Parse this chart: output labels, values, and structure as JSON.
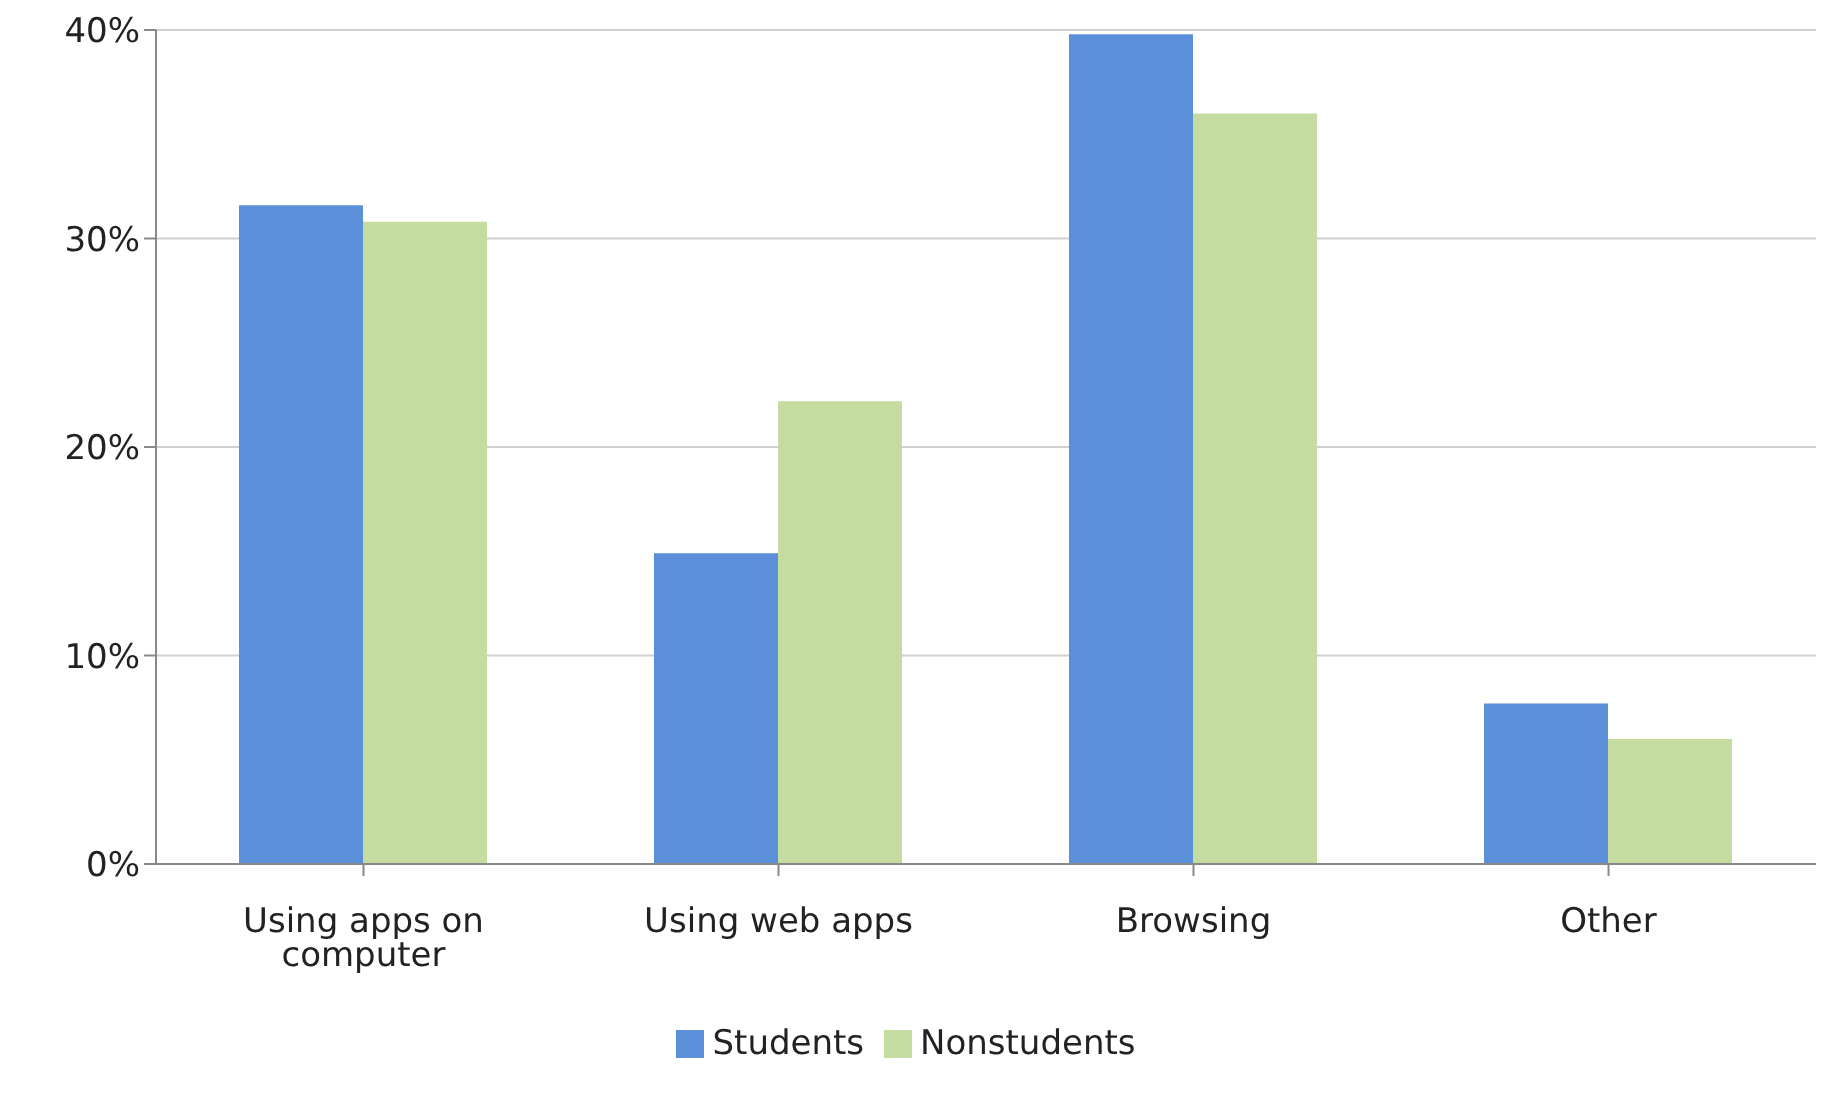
{
  "chart_data": {
    "type": "bar",
    "categories": [
      "Using apps on computer",
      "Using web apps",
      "Browsing",
      "Other"
    ],
    "series": [
      {
        "name": "Students",
        "color": "#5b8fd9",
        "values": [
          31.6,
          14.9,
          39.8,
          7.7
        ]
      },
      {
        "name": "Nonstudents",
        "color": "#c5dca0",
        "values": [
          30.8,
          22.2,
          36.0,
          6.0
        ]
      }
    ],
    "ylim": [
      0,
      40
    ],
    "yticks": [
      {
        "value": 0,
        "label": "0%"
      },
      {
        "value": 10,
        "label": "10%"
      },
      {
        "value": 20,
        "label": "20%"
      },
      {
        "value": 30,
        "label": "30%"
      },
      {
        "value": 40,
        "label": "40%"
      }
    ],
    "grid": "y",
    "legend": "bottom"
  }
}
